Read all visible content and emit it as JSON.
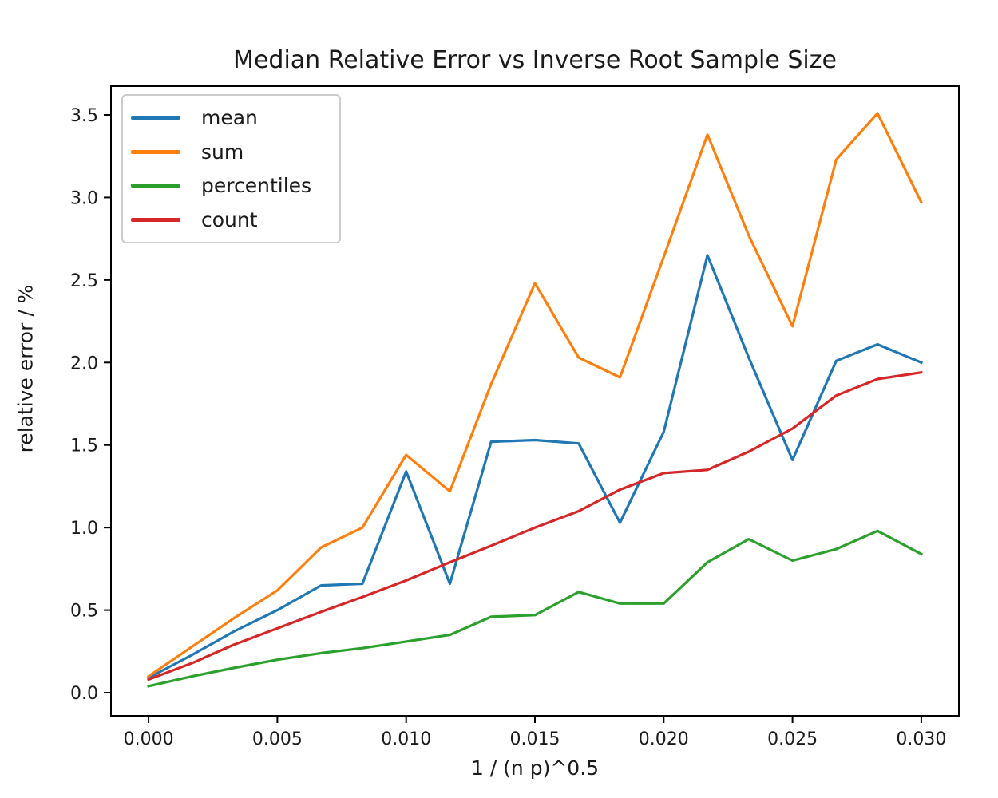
{
  "figure": {
    "background": "#ffffff"
  },
  "chart_data": {
    "type": "line",
    "title": "Median Relative Error vs Inverse Root Sample Size",
    "xlabel": "1 / (n p)^0.5",
    "ylabel": "relative error / %",
    "grid": false,
    "legend_position": "upper left",
    "xlim": [
      -0.00146,
      0.03146
    ],
    "ylim": [
      -0.14,
      3.674
    ],
    "xticks": [
      0.0,
      0.005,
      0.01,
      0.015,
      0.02,
      0.025,
      0.03
    ],
    "xtick_labels": [
      "0.000",
      "0.005",
      "0.010",
      "0.015",
      "0.020",
      "0.025",
      "0.030"
    ],
    "yticks": [
      0.0,
      0.5,
      1.0,
      1.5,
      2.0,
      2.5,
      3.0,
      3.5
    ],
    "ytick_labels": [
      "0.0",
      "0.5",
      "1.0",
      "1.5",
      "2.0",
      "2.5",
      "3.0",
      "3.5"
    ],
    "x": [
      0.0,
      0.0017,
      0.0033,
      0.005,
      0.0067,
      0.0083,
      0.01,
      0.0117,
      0.0133,
      0.015,
      0.0167,
      0.0183,
      0.02,
      0.0217,
      0.0233,
      0.025,
      0.0267,
      0.0283,
      0.03
    ],
    "series": [
      {
        "name": "mean",
        "color": "#1f77b4",
        "values": [
          0.09,
          0.23,
          0.37,
          0.5,
          0.65,
          0.66,
          1.34,
          0.66,
          1.52,
          1.53,
          1.51,
          1.03,
          1.58,
          2.65,
          2.03,
          1.41,
          2.01,
          2.11,
          2.0
        ]
      },
      {
        "name": "sum",
        "color": "#ff7f0e",
        "values": [
          0.1,
          0.28,
          0.45,
          0.62,
          0.88,
          1.0,
          1.44,
          1.22,
          1.87,
          2.48,
          2.03,
          1.91,
          2.64,
          3.38,
          2.77,
          2.22,
          3.23,
          3.51,
          2.97
        ]
      },
      {
        "name": "percentiles",
        "color": "#2ca02c",
        "values": [
          0.04,
          0.1,
          0.15,
          0.2,
          0.24,
          0.27,
          0.31,
          0.35,
          0.46,
          0.47,
          0.61,
          0.54,
          0.54,
          0.79,
          0.93,
          0.8,
          0.87,
          0.98,
          0.84
        ]
      },
      {
        "name": "count",
        "color": "#d62728",
        "values": [
          0.08,
          0.18,
          0.29,
          0.39,
          0.49,
          0.58,
          0.68,
          0.79,
          0.89,
          1.0,
          1.1,
          1.23,
          1.33,
          1.35,
          1.46,
          1.6,
          1.8,
          1.9,
          1.94
        ]
      }
    ]
  }
}
